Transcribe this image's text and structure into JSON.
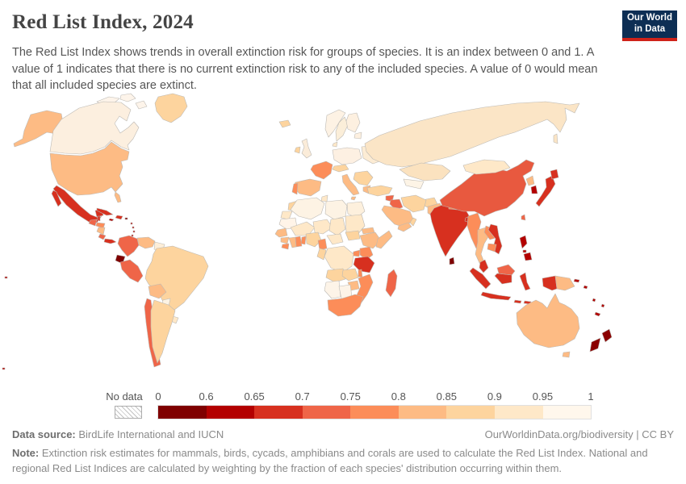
{
  "header": {
    "title": "Red List Index, 2024",
    "subtitle": "The Red List Index shows trends in overall extinction risk for groups of species. It is an index between 0 and 1. A value of 1 indicates that there is no current extinction risk to any of the included species. A value of 0 would mean that all included species are extinct."
  },
  "logo": {
    "line1": "Our World",
    "line2": "in Data",
    "bg_color": "#0d2e54",
    "accent_color": "#cf2219"
  },
  "legend": {
    "no_data_label": "No data",
    "ticks": [
      "0",
      "0.6",
      "0.65",
      "0.7",
      "0.75",
      "0.8",
      "0.85",
      "0.9",
      "0.95",
      "1"
    ],
    "bins": [
      "#7f0000",
      "#b30000",
      "#d7301f",
      "#ef6548",
      "#fc8d59",
      "#fdbb84",
      "#fdd49e",
      "#fee8c8",
      "#fff7ec"
    ]
  },
  "footer": {
    "source_label": "Data source:",
    "source_text": " BirdLife International and IUCN",
    "link_text": "OurWorldinData.org/biodiversity | CC BY",
    "note_label": "Note:",
    "note_text": " Extinction risk estimates for mammals, birds, cycads, amphibians and corals are used to calculate the Red List Index. National and regional Red List Indices are calculated by weighting by the fraction of each species' distribution occurring within them."
  },
  "map": {
    "ocean_color": "#ffffff",
    "border_color": "#bcb9b4",
    "fills": {
      "greenland": "#fdd49e",
      "canadian_arctic": "#fdf4ea",
      "canada": "#fcefdf",
      "usa": "#fdbb84",
      "mexico": "#d7301f",
      "guatemala": "#ef6548",
      "belize": "#d7301f",
      "honduras": "#fc8d59",
      "nicaragua": "#fdbb84",
      "costa_rica": "#ef6548",
      "panama": "#d7301f",
      "cuba": "#d7301f",
      "jamaica": "#b30000",
      "hispaniola": "#d7301f",
      "puerto_rico": "#7f0000",
      "antilles": "#b30000",
      "colombia": "#ef6548",
      "venezuela": "#fdbb84",
      "guianas": "#fdeed8",
      "ecuador": "#7f0000",
      "peru": "#ef6548",
      "brazil": "#fdd49e",
      "bolivia": "#fdbb84",
      "paraguay": "#fdf3e3",
      "uruguay": "#fee8c8",
      "chile": "#ef6548",
      "argentina": "#fdd49e",
      "iceland": "#fdd49e",
      "uk": "#fbecd9",
      "ireland": "#fdd49e",
      "norway": "#fdf2e4",
      "sweden": "#fbeed9",
      "finland": "#fdf0e0",
      "baltics": "#fdf0e0",
      "denmark": "#fee8c8",
      "central_europe": "#fdf0e2",
      "eastern_europe": "#fcecd4",
      "france": "#fc8d59",
      "iberia": "#fdbb84",
      "portugal": "#fc8d59",
      "italy": "#fdbb84",
      "alpine": "#fdd49e",
      "balkans": "#fdd49e",
      "greece": "#fdbb84",
      "russia": "#fbe5c6",
      "turkey": "#fdd49e",
      "syria": "#ef6548",
      "iraq": "#ef6548",
      "saudi": "#fdbb84",
      "yemen": "#fdbb84",
      "oman": "#fdd49e",
      "iran": "#fdd49e",
      "kazakhstan": "#fbe2bf",
      "uzbekistan": "#fdf4e6",
      "afghanistan": "#fdd49e",
      "pakistan": "#fdbb84",
      "india": "#d7301f",
      "sri_lanka": "#7f0000",
      "nepal": "#fc8d59",
      "bangladesh": "#d7301f",
      "china": "#e8593f",
      "mongolia": "#fee8c8",
      "north_korea": "#fdbb84",
      "south_korea": "#b30000",
      "japan": "#d7301f",
      "taiwan": "#ef6548",
      "myanmar": "#fc8d59",
      "thailand": "#fdbb84",
      "laos": "#fc8d59",
      "vietnam": "#d7301f",
      "cambodia": "#fc8d59",
      "malaysia": "#ef6548",
      "indonesia": "#d7301f",
      "philippines": "#b30000",
      "png": "#fdbb84",
      "melanesia": "#b30000",
      "australia": "#fdbb84",
      "tasmania": "#fdbb84",
      "new_zealand": "#8b0000",
      "morocco": "#fdd49e",
      "wsahara": "#fee8c8",
      "algeria": "#fdf3e4",
      "tunisia": "#fee8c8",
      "libya": "#fdf3e4",
      "egypt": "#fdf0dd",
      "mauritania": "#fff4e8",
      "mali": "#fee8c8",
      "niger": "#fee8c8",
      "chad": "#fee8c8",
      "sudan": "#fee8c8",
      "s_sudan": "#fdd49e",
      "senegal": "#fdbb84",
      "guinea": "#fdbb84",
      "sl_liberia": "#fc8d59",
      "ivory_coast": "#fdbb84",
      "ghana": "#fc8d59",
      "togo_benin": "#fc8d59",
      "nigeria": "#fdd49e",
      "cameroon": "#fc8d59",
      "car": "#fee8c8",
      "ethiopia": "#fdbb84",
      "somalia": "#fdbb84",
      "eritrea": "#fdbb84",
      "uganda": "#fc8d59",
      "kenya": "#fc8d59",
      "tanzania": "#d7301f",
      "drc": "#fee8c8",
      "congo_gabon": "#fdd49e",
      "angola": "#fdd49e",
      "zambia": "#fdd49e",
      "malawi": "#fc8d59",
      "mozambique": "#fc8d59",
      "zimbabwe": "#fdbb84",
      "namibia": "#fdf4e8",
      "botswana": "#fdf4e8",
      "south_africa": "#fc8d59",
      "madagascar": "#ef6548",
      "pacific_dots": "#b30000"
    }
  },
  "chart_data": {
    "type": "choropleth",
    "subtype": "world-map-heatmap",
    "title": "Red List Index, 2024",
    "unit": "Red List Index (0–1)",
    "legend_position": "bottom",
    "color_scale": {
      "scheme": "OrRd reversed (dark red = high extinction risk)",
      "bin_edges": [
        0,
        0.6,
        0.65,
        0.7,
        0.75,
        0.8,
        0.85,
        0.9,
        0.95,
        1
      ],
      "bin_colors": [
        "#7f0000",
        "#b30000",
        "#d7301f",
        "#ef6548",
        "#fc8d59",
        "#fdbb84",
        "#fdd49e",
        "#fee8c8",
        "#fff7ec"
      ],
      "no_data": "hatched white"
    },
    "values_estimated_from_color_bins": {
      "Canada": 0.95,
      "United States": 0.82,
      "Greenland": 0.87,
      "Mexico": 0.68,
      "Guatemala": 0.73,
      "Belize": 0.68,
      "Honduras": 0.78,
      "Nicaragua": 0.82,
      "Costa Rica": 0.73,
      "Panama": 0.68,
      "Cuba": 0.68,
      "Jamaica": 0.63,
      "Haiti": 0.68,
      "Dominican Republic": 0.68,
      "Puerto Rico": 0.55,
      "Colombia": 0.73,
      "Venezuela": 0.82,
      "Guyana": 0.95,
      "Suriname": 0.92,
      "Ecuador": 0.55,
      "Peru": 0.73,
      "Brazil": 0.87,
      "Bolivia": 0.82,
      "Paraguay": 0.95,
      "Uruguay": 0.92,
      "Chile": 0.73,
      "Argentina": 0.87,
      "Iceland": 0.87,
      "United Kingdom": 0.92,
      "Ireland": 0.87,
      "Norway": 0.95,
      "Sweden": 0.93,
      "Finland": 0.94,
      "Denmark": 0.92,
      "Germany": 0.94,
      "Poland": 0.95,
      "Ukraine": 0.93,
      "France": 0.78,
      "Spain": 0.82,
      "Portugal": 0.78,
      "Italy": 0.82,
      "Greece": 0.82,
      "Turkey": 0.87,
      "Russia": 0.92,
      "Kazakhstan": 0.92,
      "Uzbekistan": 0.96,
      "Afghanistan": 0.87,
      "Iran": 0.87,
      "Iraq": 0.73,
      "Syria": 0.73,
      "Saudi Arabia": 0.82,
      "Yemen": 0.82,
      "Oman": 0.87,
      "Pakistan": 0.82,
      "India": 0.68,
      "Nepal": 0.78,
      "Bangladesh": 0.68,
      "Sri Lanka": 0.55,
      "China": 0.73,
      "Mongolia": 0.92,
      "North Korea": 0.82,
      "South Korea": 0.63,
      "Japan": 0.68,
      "Taiwan": 0.73,
      "Myanmar": 0.78,
      "Thailand": 0.82,
      "Laos": 0.78,
      "Vietnam": 0.68,
      "Cambodia": 0.78,
      "Malaysia": 0.73,
      "Indonesia": 0.68,
      "Philippines": 0.63,
      "Papua New Guinea": 0.82,
      "Australia": 0.82,
      "New Zealand": 0.55,
      "Fiji": 0.63,
      "New Caledonia": 0.63,
      "Morocco": 0.87,
      "Algeria": 0.95,
      "Tunisia": 0.92,
      "Libya": 0.95,
      "Egypt": 0.94,
      "Mauritania": 0.97,
      "Mali": 0.92,
      "Niger": 0.92,
      "Chad": 0.92,
      "Sudan": 0.92,
      "South Sudan": 0.87,
      "Senegal": 0.82,
      "Guinea": 0.82,
      "Sierra Leone": 0.78,
      "Liberia": 0.78,
      "Ivory Coast": 0.82,
      "Ghana": 0.78,
      "Benin": 0.78,
      "Nigeria": 0.87,
      "Cameroon": 0.78,
      "Central African Republic": 0.92,
      "Ethiopia": 0.82,
      "Somalia": 0.82,
      "Eritrea": 0.82,
      "Uganda": 0.78,
      "Kenya": 0.78,
      "Tanzania": 0.68,
      "Democratic Republic of Congo": 0.92,
      "Congo": 0.87,
      "Gabon": 0.87,
      "Angola": 0.87,
      "Zambia": 0.87,
      "Malawi": 0.78,
      "Mozambique": 0.78,
      "Zimbabwe": 0.82,
      "Namibia": 0.97,
      "Botswana": 0.97,
      "South Africa": 0.78,
      "Madagascar": 0.73
    }
  }
}
